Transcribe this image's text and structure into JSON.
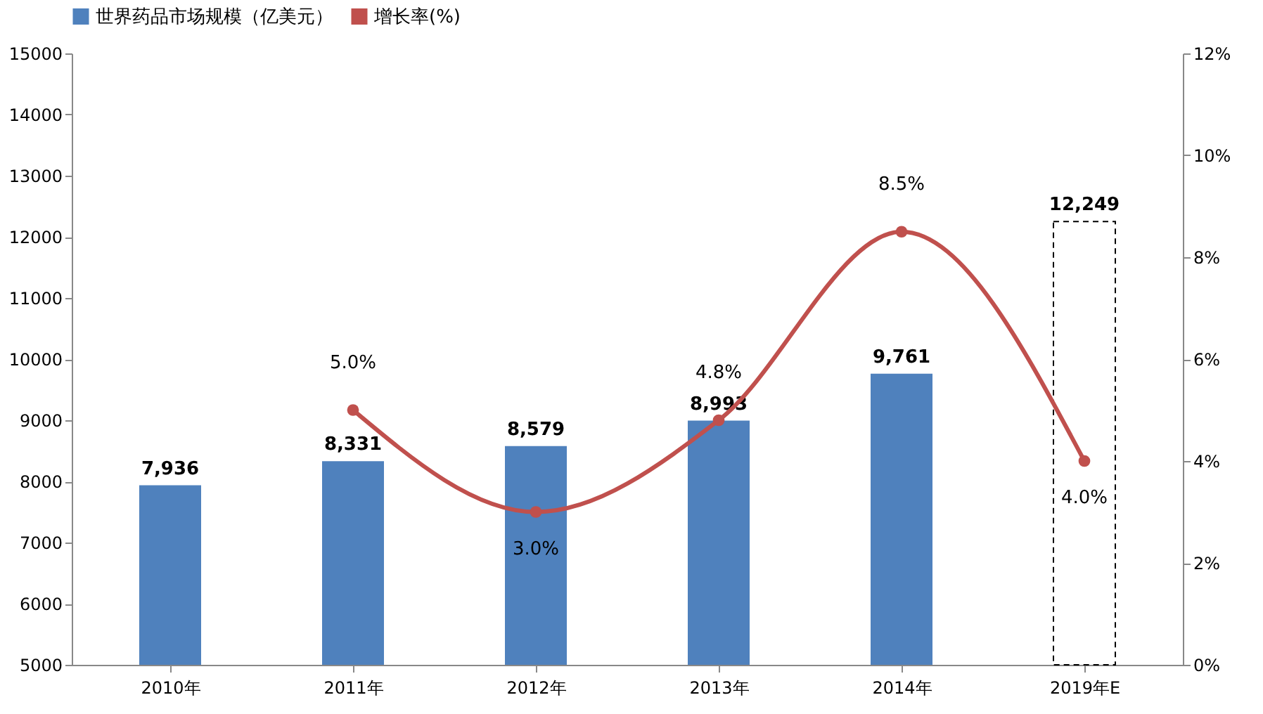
{
  "chart_data": {
    "type": "bar",
    "categories": [
      "2010年",
      "2011年",
      "2012年",
      "2013年",
      "2014年",
      "2019年E"
    ],
    "series": [
      {
        "name": "世界药品市场规模（亿美元）",
        "color": "#4f81bd",
        "colors": [
          "#4f81bd",
          "#4f81bd",
          "#4f81bd",
          "#4f81bd",
          "#4f81bd",
          "#ffffff"
        ],
        "values": [
          7936,
          8331,
          8579,
          8993,
          9761,
          12249
        ],
        "value_labels": [
          "7,936",
          "8,331",
          "8,579",
          "8,993",
          "9,761",
          "12,249"
        ]
      },
      {
        "name": "增长率(%)",
        "type": "line",
        "axis": "y2",
        "color": "#c0504d",
        "marker": "circle",
        "values": [
          null,
          5.0,
          3.0,
          4.8,
          8.5,
          4.0
        ],
        "value_labels": [
          null,
          "5.0%",
          "3.0%",
          "4.8%",
          "8.5%",
          "4.0%"
        ]
      }
    ],
    "ylim": [
      5000,
      15000
    ],
    "yticks": [
      5000,
      6000,
      7000,
      8000,
      9000,
      10000,
      11000,
      12000,
      13000,
      14000,
      15000
    ],
    "y2lim": [
      0,
      12
    ],
    "y2ticks": [
      {
        "value": 0,
        "label": "0%"
      },
      {
        "value": 2,
        "label": "2%"
      },
      {
        "value": 4,
        "label": "4%"
      },
      {
        "value": 6,
        "label": "6%"
      },
      {
        "value": 8,
        "label": "8%"
      },
      {
        "value": 10,
        "label": "10%"
      },
      {
        "value": 12,
        "label": "12%"
      }
    ],
    "grid": false,
    "legend": "top"
  }
}
